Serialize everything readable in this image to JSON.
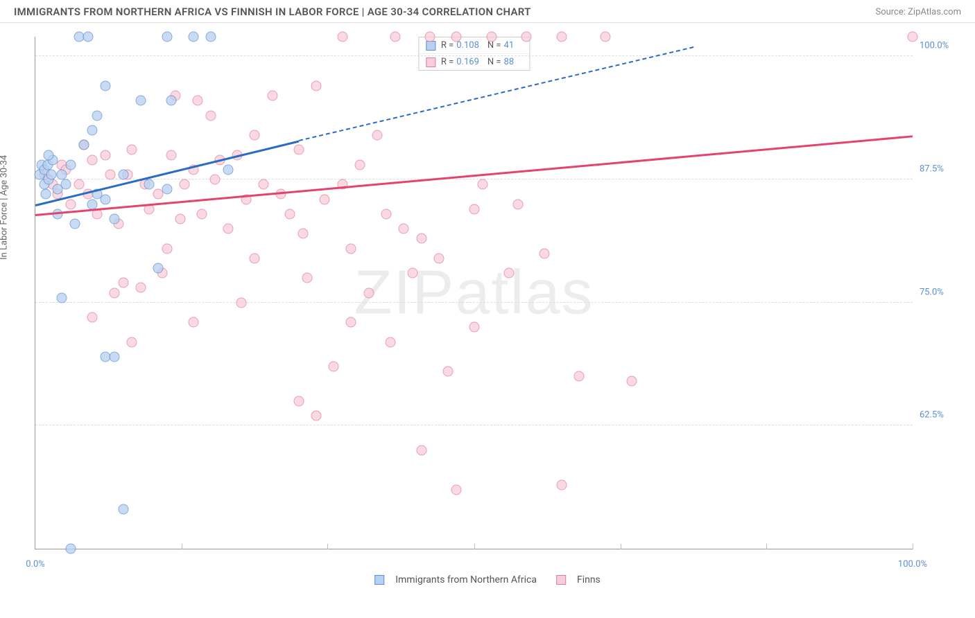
{
  "title": "IMMIGRANTS FROM NORTHERN AFRICA VS FINNISH IN LABOR FORCE | AGE 30-34 CORRELATION CHART",
  "source_label": "Source: ",
  "source_name": "ZipAtlas.com",
  "ylabel": "In Labor Force | Age 30-34",
  "watermark_a": "ZIP",
  "watermark_b": "atlas",
  "chart": {
    "type": "scatter",
    "xlim": [
      0,
      100
    ],
    "ylim": [
      50,
      102
    ],
    "background_color": "#ffffff",
    "grid_color": "#dddddd",
    "axis_color": "#999999",
    "tick_label_color": "#5b8fd6",
    "yticks": [
      62.5,
      75.0,
      87.5,
      100.0
    ],
    "ytick_labels": [
      "62.5%",
      "75.0%",
      "87.5%",
      "100.0%"
    ],
    "xticks": [
      0,
      16.7,
      33.3,
      50,
      66.7,
      83.3,
      100
    ],
    "xtick_labels": {
      "0": "0.0%",
      "100": "100.0%"
    },
    "marker_radius": 7.5,
    "marker_opacity": 0.75
  },
  "series_a": {
    "label": "Immigrants from Northern Africa",
    "color_fill": "#b8d0ef",
    "color_stroke": "#5b8fd6",
    "trend_color": "#2a6bc4",
    "R": "0.108",
    "N": "41",
    "trend": {
      "x1": 0,
      "y1": 85.0,
      "x2": 30,
      "y2": 91.5,
      "x2_dash": 75,
      "y2_dash": 101.0
    },
    "points": [
      [
        0.5,
        88
      ],
      [
        0.7,
        89
      ],
      [
        1.0,
        87
      ],
      [
        1.0,
        88.5
      ],
      [
        1.2,
        86
      ],
      [
        1.4,
        89
      ],
      [
        1.5,
        87.5
      ],
      [
        1.8,
        88
      ],
      [
        2.0,
        89.5
      ],
      [
        2.5,
        86.5
      ],
      [
        3.0,
        88
      ],
      [
        3.5,
        87
      ],
      [
        4.0,
        89
      ],
      [
        4.5,
        83
      ],
      [
        5.0,
        102
      ],
      [
        6.0,
        102
      ],
      [
        6.5,
        85
      ],
      [
        7.0,
        86
      ],
      [
        7.0,
        94.0
      ],
      [
        8.0,
        69.5
      ],
      [
        8.0,
        97.0
      ],
      [
        8.0,
        85.5
      ],
      [
        9.0,
        83.5
      ],
      [
        9.0,
        69.5
      ],
      [
        10.0,
        88
      ],
      [
        12.0,
        95.5
      ],
      [
        13.0,
        87
      ],
      [
        14.0,
        78.5
      ],
      [
        15.0,
        102
      ],
      [
        15.0,
        86.5
      ],
      [
        15.5,
        95.5
      ],
      [
        18.0,
        102
      ],
      [
        20.0,
        102
      ],
      [
        22.0,
        88.5
      ],
      [
        3.0,
        75.5
      ],
      [
        10.0,
        54
      ],
      [
        4.0,
        50
      ],
      [
        1.5,
        90
      ],
      [
        2.5,
        84
      ],
      [
        5.5,
        91
      ],
      [
        6.5,
        92.5
      ]
    ]
  },
  "series_b": {
    "label": "Finns",
    "color_fill": "#f7cdd9",
    "color_stroke": "#e57b9a",
    "trend_color": "#e5436d",
    "R": "0.169",
    "N": "88",
    "trend": {
      "x1": 0,
      "y1": 84.0,
      "x2": 100,
      "y2": 92.0
    },
    "points": [
      [
        1.0,
        88
      ],
      [
        2.0,
        87
      ],
      [
        2.5,
        86
      ],
      [
        3.0,
        89
      ],
      [
        3.5,
        88.5
      ],
      [
        4.0,
        85
      ],
      [
        5.0,
        87
      ],
      [
        5.5,
        91
      ],
      [
        6.0,
        86
      ],
      [
        6.5,
        89.5
      ],
      [
        7.0,
        84
      ],
      [
        8.0,
        90
      ],
      [
        8.5,
        88
      ],
      [
        9.0,
        76
      ],
      [
        9.5,
        83
      ],
      [
        10.0,
        77
      ],
      [
        10.5,
        88
      ],
      [
        11.0,
        90.5
      ],
      [
        12.0,
        76.5
      ],
      [
        12.5,
        87
      ],
      [
        13.0,
        84.5
      ],
      [
        14.0,
        86
      ],
      [
        14.5,
        78
      ],
      [
        15.0,
        80.5
      ],
      [
        15.5,
        90
      ],
      [
        16.0,
        96
      ],
      [
        16.5,
        83.5
      ],
      [
        17.0,
        87
      ],
      [
        18.0,
        88.5
      ],
      [
        18.5,
        95.5
      ],
      [
        19.0,
        84
      ],
      [
        20.0,
        94
      ],
      [
        20.5,
        87.5
      ],
      [
        21.0,
        89.5
      ],
      [
        22.0,
        82.5
      ],
      [
        23.0,
        90
      ],
      [
        24.0,
        85.5
      ],
      [
        25.0,
        92
      ],
      [
        25.0,
        79.5
      ],
      [
        26.0,
        87
      ],
      [
        27.0,
        96
      ],
      [
        28.0,
        86
      ],
      [
        29.0,
        84
      ],
      [
        30.0,
        90.5
      ],
      [
        30.5,
        82
      ],
      [
        31.0,
        77.5
      ],
      [
        32.0,
        63.5
      ],
      [
        32.0,
        97
      ],
      [
        33.0,
        85.5
      ],
      [
        34.0,
        68.5
      ],
      [
        35.0,
        102
      ],
      [
        35.0,
        87
      ],
      [
        36.0,
        80.5
      ],
      [
        37.0,
        89
      ],
      [
        38.0,
        76
      ],
      [
        39.0,
        92
      ],
      [
        40.0,
        84
      ],
      [
        40.5,
        71
      ],
      [
        41.0,
        102
      ],
      [
        42.0,
        82.5
      ],
      [
        43.0,
        78
      ],
      [
        44.0,
        60
      ],
      [
        44.0,
        81.5
      ],
      [
        45.0,
        102
      ],
      [
        46.0,
        79.5
      ],
      [
        47.0,
        68
      ],
      [
        48.0,
        102
      ],
      [
        50.0,
        84.5
      ],
      [
        50.0,
        72.5
      ],
      [
        51.0,
        87
      ],
      [
        52.0,
        102
      ],
      [
        48.0,
        56
      ],
      [
        54.0,
        78
      ],
      [
        55.0,
        85
      ],
      [
        56.0,
        102
      ],
      [
        58.0,
        80
      ],
      [
        60.0,
        102
      ],
      [
        62.0,
        67.5
      ],
      [
        60.0,
        56.5
      ],
      [
        65.0,
        102
      ],
      [
        68.0,
        67
      ],
      [
        100.0,
        102
      ],
      [
        6.5,
        73.5
      ],
      [
        11.0,
        71
      ],
      [
        18.0,
        73
      ],
      [
        23.5,
        75
      ],
      [
        30.0,
        65
      ],
      [
        36.0,
        73
      ]
    ]
  },
  "legend_labels": {
    "R": "R =",
    "N": "N ="
  }
}
